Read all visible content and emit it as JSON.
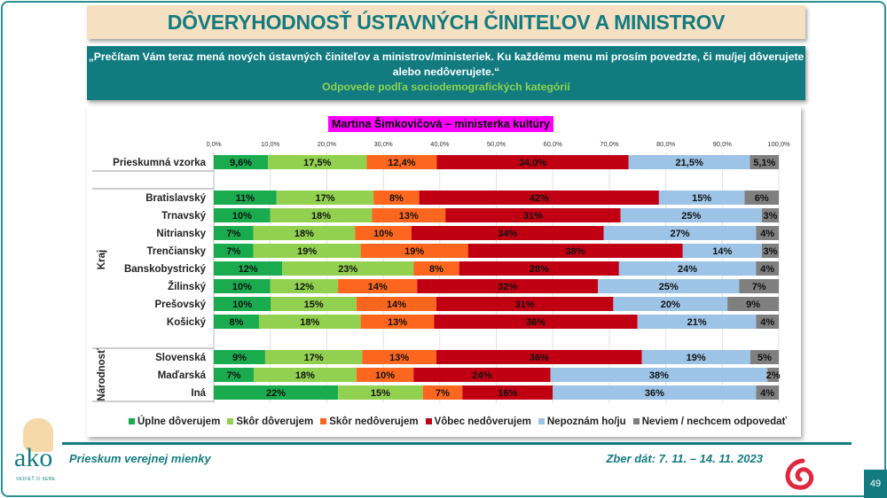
{
  "header": {
    "title": "DÔVERYHODNOSŤ ÚSTAVNÝCH ČINITEĽOV A MINISTROV"
  },
  "question": {
    "text": "„Prečítam Vám teraz mená nových ústavných činiteľov a ministrov/ministeriek. Ku každému menu mi prosím povedzte, či mu/jej dôverujete alebo nedôverujete.“",
    "subtitle": "Odpovede podľa sociodemografických kategórií"
  },
  "chart_data": {
    "type": "bar",
    "orientation": "horizontal-stacked-100",
    "title": "Martina Šimkovičová – ministerka kultúry",
    "xlim": [
      0,
      100
    ],
    "x_ticks": [
      "0,0%",
      "10,0%",
      "20,0%",
      "30,0%",
      "40,0%",
      "50,0%",
      "60,0%",
      "70,0%",
      "80,0%",
      "90,0%",
      "100,0%"
    ],
    "series_names": [
      "Úplne dôverujem",
      "Skôr dôverujem",
      "Skôr nedôverujem",
      "Vôbec nedôverujem",
      "Nepoznám ho/ju",
      "Neviem / nechcem odpovedať"
    ],
    "colors": [
      "#1aab4f",
      "#92d050",
      "#fc661e",
      "#c00012",
      "#9dc3e6",
      "#7f7f7f"
    ],
    "groups": [
      {
        "label": "",
        "rows": [
          {
            "category": "Prieskumná vzorka",
            "values": [
              9.6,
              17.5,
              12.4,
              34.0,
              21.5,
              5.1
            ],
            "labels": [
              "9,6%",
              "17,5%",
              "12,4%",
              "34,0%",
              "21,5%",
              "5,1%"
            ]
          }
        ]
      },
      {
        "label": "Kraj",
        "rows": [
          {
            "category": "Bratislavský",
            "values": [
              11,
              17,
              8,
              42,
              15,
              6
            ]
          },
          {
            "category": "Trnavský",
            "values": [
              10,
              18,
              13,
              31,
              25,
              3
            ]
          },
          {
            "category": "Nitriansky",
            "values": [
              7,
              18,
              10,
              34,
              27,
              4
            ]
          },
          {
            "category": "Trenčiansky",
            "values": [
              7,
              19,
              19,
              38,
              14,
              3
            ]
          },
          {
            "category": "Banskobystrický",
            "values": [
              12,
              23,
              8,
              28,
              24,
              4
            ]
          },
          {
            "category": "Žilinský",
            "values": [
              10,
              12,
              14,
              32,
              25,
              7
            ]
          },
          {
            "category": "Prešovský",
            "values": [
              10,
              15,
              14,
              31,
              20,
              9
            ]
          },
          {
            "category": "Košický",
            "values": [
              8,
              18,
              13,
              36,
              21,
              4
            ]
          }
        ]
      },
      {
        "label": "Národnosť",
        "rows": [
          {
            "category": "Slovenská",
            "values": [
              9,
              17,
              13,
              36,
              19,
              5
            ]
          },
          {
            "category": "Maďarská",
            "values": [
              7,
              18,
              10,
              24,
              38,
              2
            ]
          },
          {
            "category": "Iná",
            "values": [
              22,
              15,
              7,
              16,
              36,
              4
            ]
          }
        ]
      }
    ],
    "legend_position": "bottom"
  },
  "footer": {
    "left": "Prieskum verejnej mienky",
    "right": "Zber dát: 7. 11. – 14. 11. 2023",
    "page": "49",
    "logo_text": "ako",
    "logo_tagline": "VEDIEŤ O SEBE"
  }
}
